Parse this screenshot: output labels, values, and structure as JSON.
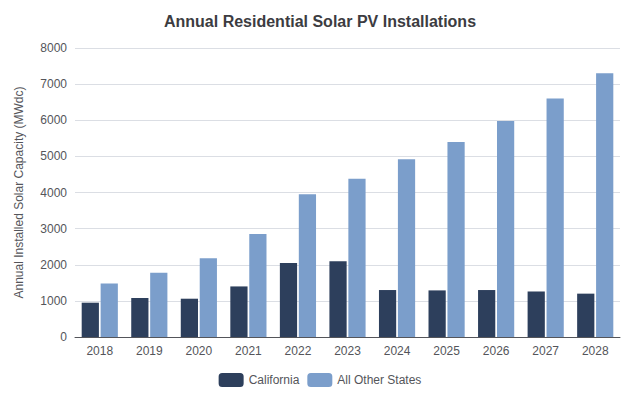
{
  "chart_data": {
    "type": "bar",
    "title": "Annual Residential Solar PV Installations",
    "ylabel": "Annual Installed Solar Capacity (MWdc)",
    "categories": [
      "2018",
      "2019",
      "2020",
      "2021",
      "2022",
      "2023",
      "2024",
      "2025",
      "2026",
      "2027",
      "2028"
    ],
    "series": [
      {
        "name": "California",
        "color": "#2d3f5c",
        "values": [
          950,
          1080,
          1060,
          1400,
          2050,
          2100,
          1300,
          1290,
          1300,
          1260,
          1200
        ]
      },
      {
        "name": "All Other States",
        "color": "#7b9ecb",
        "values": [
          1480,
          1780,
          2180,
          2850,
          3950,
          4380,
          4920,
          5400,
          5980,
          6600,
          7300
        ]
      }
    ],
    "ylim": [
      0,
      8000
    ],
    "yticks": [
      0,
      1000,
      2000,
      3000,
      4000,
      5000,
      6000,
      7000,
      8000
    ],
    "grid": true,
    "legend": "bottom"
  }
}
